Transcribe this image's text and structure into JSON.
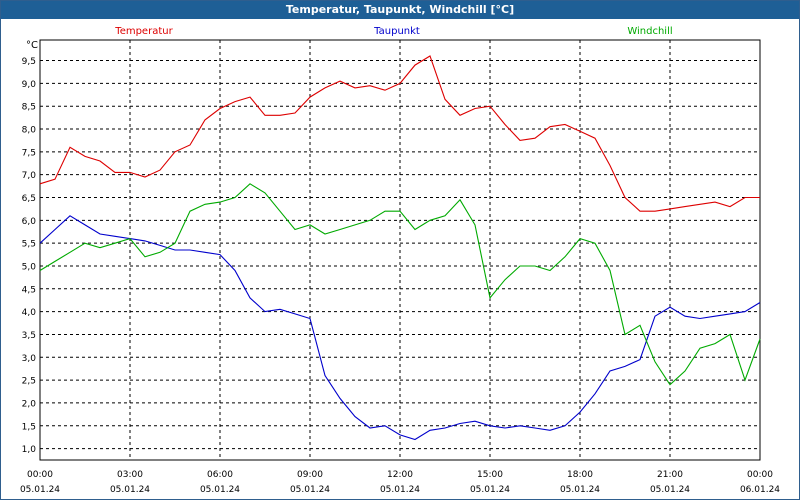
{
  "window": {
    "title": "Temperatur, Taupunkt, Windchill [°C]"
  },
  "colors": {
    "titlebar": "#1e5f96",
    "temperatur": "#dd0000",
    "taupunkt": "#0000cc",
    "windchill": "#00aa00",
    "grid": "#000000"
  },
  "chart_data": {
    "type": "line",
    "title": "Temperatur, Taupunkt, Windchill [°C]",
    "ylabel": "°C",
    "ylim": [
      0.75,
      9.95
    ],
    "xlim": [
      0,
      24
    ],
    "grid": true,
    "y_ticks": [
      "1,0",
      "1,5",
      "2,0",
      "2,5",
      "3,0",
      "3,5",
      "4,0",
      "4,5",
      "5,0",
      "5,5",
      "6,0",
      "6,5",
      "7,0",
      "7,5",
      "8,0",
      "8,5",
      "9,0",
      "9,5"
    ],
    "x_ticks": [
      {
        "time": "00:00",
        "date": "05.01.24"
      },
      {
        "time": "03:00",
        "date": "05.01.24"
      },
      {
        "time": "06:00",
        "date": "05.01.24"
      },
      {
        "time": "09:00",
        "date": "05.01.24"
      },
      {
        "time": "12:00",
        "date": "05.01.24"
      },
      {
        "time": "15:00",
        "date": "05.01.24"
      },
      {
        "time": "18:00",
        "date": "05.01.24"
      },
      {
        "time": "21:00",
        "date": "05.01.24"
      },
      {
        "time": "00:00",
        "date": "06.01.24"
      }
    ],
    "legend_placement": "top",
    "series": [
      {
        "name": "Temperatur",
        "color": "#dd0000",
        "x": [
          0,
          0.5,
          1,
          1.5,
          2,
          2.5,
          3,
          3.5,
          4,
          4.5,
          5,
          5.5,
          6,
          6.5,
          7,
          7.5,
          8,
          8.5,
          9,
          9.5,
          10,
          10.5,
          11,
          11.5,
          12,
          12.5,
          13,
          13.5,
          14,
          14.5,
          15,
          15.5,
          16,
          16.5,
          17,
          17.5,
          18,
          18.5,
          19,
          19.5,
          20,
          20.5,
          21,
          21.5,
          22,
          22.5,
          23,
          23.5,
          24
        ],
        "y": [
          6.8,
          6.9,
          7.6,
          7.4,
          7.3,
          7.05,
          7.05,
          6.95,
          7.1,
          7.5,
          7.65,
          8.2,
          8.45,
          8.6,
          8.7,
          8.3,
          8.3,
          8.35,
          8.7,
          8.9,
          9.05,
          8.9,
          8.95,
          8.85,
          9.0,
          9.4,
          9.6,
          8.65,
          8.3,
          8.45,
          8.5,
          8.1,
          7.75,
          7.8,
          8.05,
          8.1,
          7.95,
          7.8,
          7.2,
          6.5,
          6.2,
          6.2,
          6.25,
          6.3,
          6.35,
          6.4,
          6.3,
          6.5,
          6.5
        ]
      },
      {
        "name": "Taupunkt",
        "color": "#0000cc",
        "x": [
          0,
          0.5,
          1,
          1.5,
          2,
          2.5,
          3,
          3.5,
          4,
          4.5,
          5,
          5.5,
          6,
          6.5,
          7,
          7.5,
          8,
          8.5,
          9,
          9.5,
          10,
          10.5,
          11,
          11.5,
          12,
          12.5,
          13,
          13.5,
          14,
          14.5,
          15,
          15.5,
          16,
          16.5,
          17,
          17.5,
          18,
          18.5,
          19,
          19.5,
          20,
          20.5,
          21,
          21.5,
          22,
          22.5,
          23,
          23.5,
          24
        ],
        "y": [
          5.5,
          5.8,
          6.1,
          5.9,
          5.7,
          5.65,
          5.6,
          5.55,
          5.45,
          5.35,
          5.35,
          5.3,
          5.25,
          4.9,
          4.3,
          4.0,
          4.05,
          3.95,
          3.85,
          2.6,
          2.1,
          1.7,
          1.45,
          1.5,
          1.3,
          1.2,
          1.4,
          1.45,
          1.55,
          1.6,
          1.5,
          1.45,
          1.5,
          1.45,
          1.4,
          1.5,
          1.8,
          2.2,
          2.7,
          2.8,
          2.95,
          3.9,
          4.1,
          3.9,
          3.85,
          3.9,
          3.95,
          4.0,
          4.2
        ]
      },
      {
        "name": "Windchill",
        "color": "#00aa00",
        "x": [
          0,
          0.5,
          1,
          1.5,
          2,
          2.5,
          3,
          3.5,
          4,
          4.5,
          5,
          5.5,
          6,
          6.5,
          7,
          7.5,
          8,
          8.5,
          9,
          9.5,
          10,
          10.5,
          11,
          11.5,
          12,
          12.5,
          13,
          13.5,
          14,
          14.5,
          15,
          15.5,
          16,
          16.5,
          17,
          17.5,
          18,
          18.5,
          19,
          19.5,
          20,
          20.5,
          21,
          21.5,
          22,
          22.5,
          23,
          23.5,
          24
        ],
        "y": [
          4.9,
          5.1,
          5.3,
          5.5,
          5.4,
          5.5,
          5.6,
          5.2,
          5.3,
          5.5,
          6.2,
          6.35,
          6.4,
          6.5,
          6.8,
          6.6,
          6.2,
          5.8,
          5.9,
          5.7,
          5.8,
          5.9,
          6.0,
          6.2,
          6.2,
          5.8,
          6.0,
          6.1,
          6.45,
          5.9,
          4.3,
          4.7,
          5.0,
          5.0,
          4.9,
          5.2,
          5.6,
          5.5,
          4.9,
          3.5,
          3.7,
          2.9,
          2.4,
          2.7,
          3.2,
          3.3,
          3.5,
          2.5,
          3.4
        ]
      }
    ]
  }
}
